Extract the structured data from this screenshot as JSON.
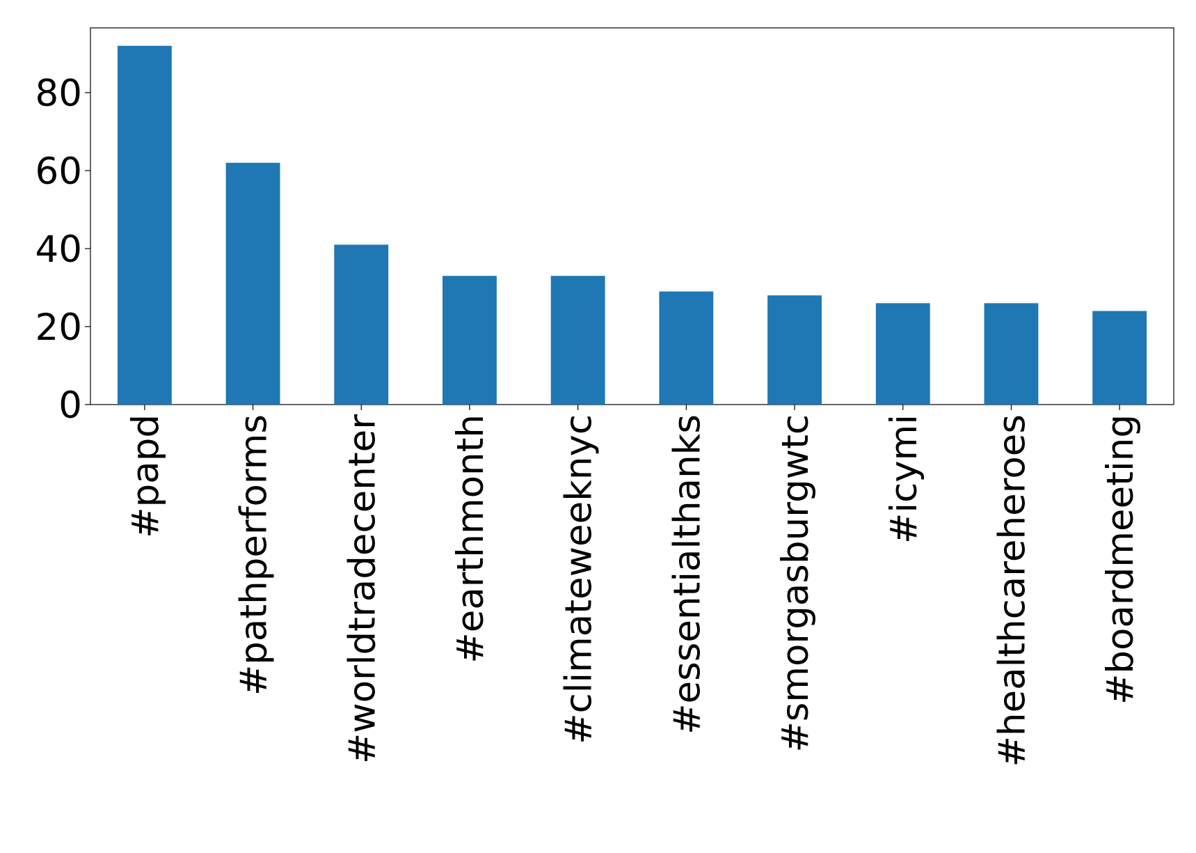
{
  "chart_data": {
    "type": "bar",
    "categories": [
      "#papd",
      "#pathperforms",
      "#worldtradecenter",
      "#earthmonth",
      "#climateweeknyc",
      "#essentialthanks",
      "#smorgasburgwtc",
      "#icymi",
      "#healthcareheroes",
      "#boardmeeting"
    ],
    "values": [
      92,
      62,
      41,
      33,
      33,
      29,
      28,
      26,
      26,
      24
    ],
    "color": "#1f77b4",
    "ylim": [
      0,
      96.6
    ],
    "yticks": [
      0,
      20,
      40,
      60,
      80
    ],
    "grid": false
  }
}
